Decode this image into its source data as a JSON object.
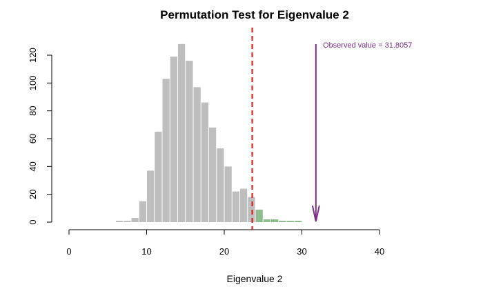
{
  "chart_data": {
    "type": "bar",
    "title": "Permutation Test for Eigenvalue 2",
    "xlabel": "Eigenvalue 2",
    "ylabel": "",
    "xlim": [
      0,
      40
    ],
    "ylim": [
      0,
      120
    ],
    "x_ticks": [
      0,
      10,
      20,
      30,
      40
    ],
    "y_ticks": [
      0,
      20,
      40,
      60,
      80,
      100,
      120
    ],
    "bin_width": 1,
    "bins": [
      {
        "x0": 6,
        "x1": 7,
        "value": 1,
        "group": "below"
      },
      {
        "x0": 7,
        "x1": 8,
        "value": 1,
        "group": "below"
      },
      {
        "x0": 8,
        "x1": 9,
        "value": 3,
        "group": "below"
      },
      {
        "x0": 9,
        "x1": 10,
        "value": 15,
        "group": "below"
      },
      {
        "x0": 10,
        "x1": 11,
        "value": 37,
        "group": "below"
      },
      {
        "x0": 11,
        "x1": 12,
        "value": 65,
        "group": "below"
      },
      {
        "x0": 12,
        "x1": 13,
        "value": 103,
        "group": "below"
      },
      {
        "x0": 13,
        "x1": 14,
        "value": 119,
        "group": "below"
      },
      {
        "x0": 14,
        "x1": 15,
        "value": 128,
        "group": "below"
      },
      {
        "x0": 15,
        "x1": 16,
        "value": 116,
        "group": "below"
      },
      {
        "x0": 16,
        "x1": 17,
        "value": 97,
        "group": "below"
      },
      {
        "x0": 17,
        "x1": 18,
        "value": 86,
        "group": "below"
      },
      {
        "x0": 18,
        "x1": 19,
        "value": 68,
        "group": "below"
      },
      {
        "x0": 19,
        "x1": 20,
        "value": 53,
        "group": "below"
      },
      {
        "x0": 20,
        "x1": 21,
        "value": 40,
        "group": "below"
      },
      {
        "x0": 21,
        "x1": 22,
        "value": 22,
        "group": "below"
      },
      {
        "x0": 22,
        "x1": 23,
        "value": 24,
        "group": "below"
      },
      {
        "x0": 23,
        "x1": 24,
        "value": 18,
        "group": "below"
      },
      {
        "x0": 24,
        "x1": 25,
        "value": 9,
        "group": "above"
      },
      {
        "x0": 25,
        "x1": 26,
        "value": 2,
        "group": "above"
      },
      {
        "x0": 26,
        "x1": 27,
        "value": 2,
        "group": "above"
      },
      {
        "x0": 27,
        "x1": 28,
        "value": 1,
        "group": "above"
      },
      {
        "x0": 28,
        "x1": 29,
        "value": 1,
        "group": "above"
      },
      {
        "x0": 29,
        "x1": 30,
        "value": 1,
        "group": "above"
      }
    ],
    "threshold": 23.6,
    "observed_value": 31.8057,
    "annotation": "Observed value = 31.8057",
    "colors": {
      "below": "#bebebe",
      "above": "#8fbc8f",
      "threshold": "#dd1111",
      "observed": "#7a2f87"
    },
    "grid": false,
    "legend": "none"
  }
}
